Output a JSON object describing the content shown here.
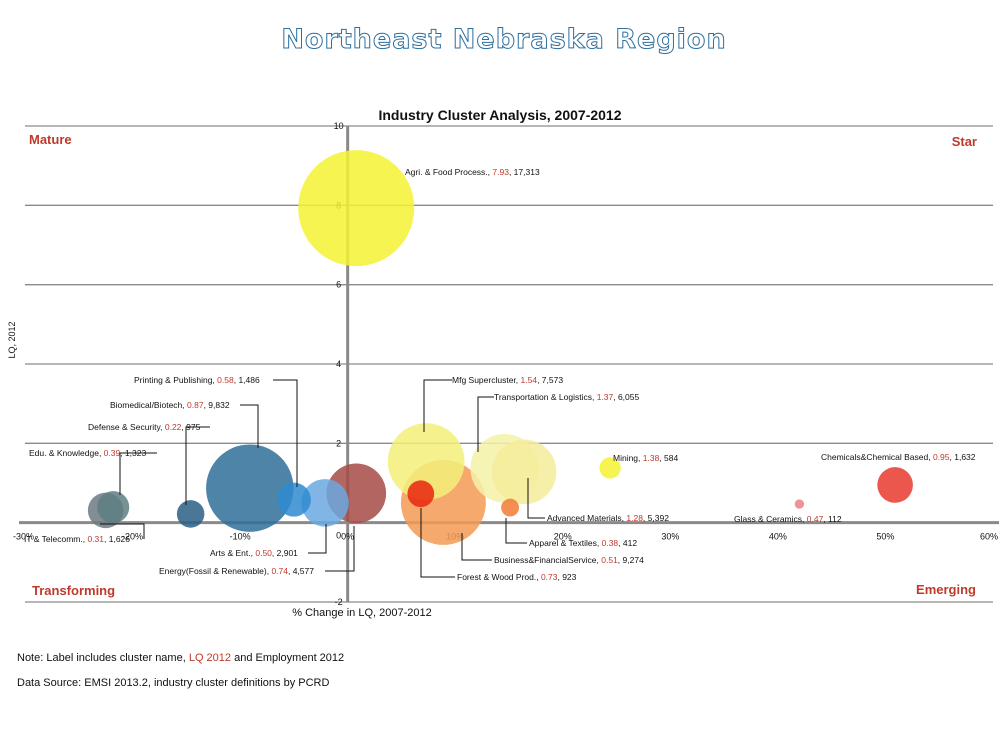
{
  "banner": "Northeast Nebraska Region",
  "notes": {
    "label_prefix": "Note: Label includes cluster name, ",
    "label_lq": "LQ 2012",
    "label_and": " and Employment 2012",
    "source": "Data Source: EMSI 2013.2, industry cluster definitions by PCRD"
  },
  "chart_data": {
    "type": "bubble",
    "title": "Industry Cluster Analysis, 2007-2012",
    "xlabel": "% Change in LQ, 2007-2012",
    "ylabel": "LQ, 2012",
    "xlim": [
      -30,
      60
    ],
    "ylim": [
      -2,
      10
    ],
    "x_ticks": [
      -30,
      -20,
      -10,
      0,
      10,
      20,
      30,
      40,
      50,
      60
    ],
    "x_tick_labels": [
      "-30%",
      "-20%",
      "-10%",
      "0%",
      "10%",
      "20%",
      "30%",
      "40%",
      "50%",
      "60%"
    ],
    "y_ticks": [
      -2,
      0,
      2,
      4,
      6,
      8,
      10
    ],
    "y_tick_labels": [
      "-2",
      "0",
      "2",
      "4",
      "6",
      "8",
      "10"
    ],
    "grid": "horizontal",
    "quadrants": {
      "top_left": "Mature",
      "top_right": "Star",
      "bottom_left": "Transforming",
      "bottom_right": "Emerging"
    },
    "points": [
      {
        "name": "Agri. & Food Process.",
        "lq": "7.93",
        "emp": "17,313",
        "x": 0.8,
        "y": 7.93,
        "employment": 17313,
        "color": "#f5f233"
      },
      {
        "name": "Mfg Supercluster",
        "lq": "1.54",
        "emp": "7,573",
        "x": 7.3,
        "y": 1.54,
        "employment": 7573,
        "color": "#f3f07a"
      },
      {
        "name": "Transportation & Logistics",
        "lq": "1.37",
        "emp": "6,055",
        "x": 14.6,
        "y": 1.37,
        "employment": 6055,
        "color": "#f5f2a8"
      },
      {
        "name": "Mining",
        "lq": "1.38",
        "emp": "584",
        "x": 24.4,
        "y": 1.38,
        "employment": 584,
        "color": "#f5f233"
      },
      {
        "name": "Chemicals&Chemical Based",
        "lq": "0.95",
        "emp": "1,632",
        "x": 50.9,
        "y": 0.95,
        "employment": 1632,
        "color": "#e83a2e"
      },
      {
        "name": "Glass & Ceramics",
        "lq": "0.47",
        "emp": "112",
        "x": 42.0,
        "y": 0.47,
        "employment": 112,
        "color": "#f08080"
      },
      {
        "name": "Advanced Materials",
        "lq": "1.28",
        "emp": "5,392",
        "x": 16.4,
        "y": 1.28,
        "employment": 5392,
        "color": "#f5ec9a"
      },
      {
        "name": "Apparel & Textiles",
        "lq": "0.38",
        "emp": "412",
        "x": 15.1,
        "y": 0.38,
        "employment": 412,
        "color": "#f07b33"
      },
      {
        "name": "Business&FinancialService",
        "lq": "0.51",
        "emp": "9,274",
        "x": 8.9,
        "y": 0.51,
        "employment": 9274,
        "color": "#f39a52"
      },
      {
        "name": "Forest & Wood Prod.",
        "lq": "0.73",
        "emp": "923",
        "x": 6.8,
        "y": 0.73,
        "employment": 923,
        "color": "#e8260e"
      },
      {
        "name": "Energy(Fossil & Renewable)",
        "lq": "0.74",
        "emp": "4,577",
        "x": 0.8,
        "y": 0.74,
        "employment": 4577,
        "color": "#a64b45"
      },
      {
        "name": "Arts & Ent.",
        "lq": "0.50",
        "emp": "2,901",
        "x": -2.1,
        "y": 0.5,
        "employment": 2901,
        "color": "#6aa8e0"
      },
      {
        "name": "Printing & Publishing",
        "lq": "0.58",
        "emp": "1,486",
        "x": -5.0,
        "y": 0.58,
        "employment": 1486,
        "color": "#2e8bd0"
      },
      {
        "name": "Biomedical/Biotech",
        "lq": "0.87",
        "emp": "9,832",
        "x": -9.1,
        "y": 0.87,
        "employment": 9832,
        "color": "#2f6f99"
      },
      {
        "name": "Defense & Security",
        "lq": "0.22",
        "emp": "975",
        "x": -14.6,
        "y": 0.22,
        "employment": 975,
        "color": "#2a5f85"
      },
      {
        "name": "Edu. & Knowledge",
        "lq": "0.39",
        "emp": "1,323",
        "x": -21.8,
        "y": 0.39,
        "employment": 1323,
        "color": "#5e7f82"
      },
      {
        "name": "IT & Telecomm.",
        "lq": "0.31",
        "emp": "1,626",
        "x": -22.5,
        "y": 0.31,
        "employment": 1626,
        "color": "#6c7a80"
      }
    ]
  }
}
